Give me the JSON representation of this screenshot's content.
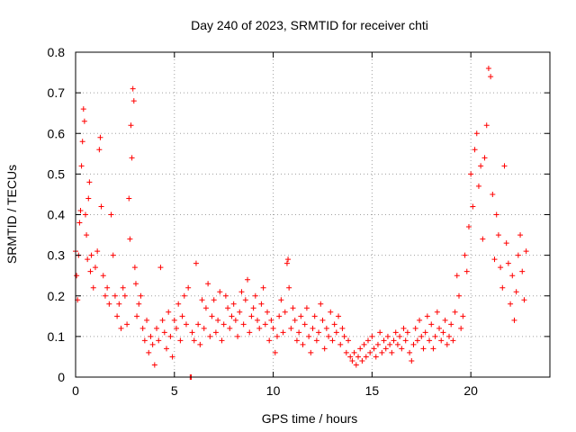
{
  "chart_data": {
    "type": "scatter",
    "title": "Day 240 of 2023, SRMTID for receiver chti",
    "xlabel": "GPS time / hours",
    "ylabel": "SRMTID / TECUs",
    "xlim": [
      0,
      24
    ],
    "ylim": [
      0,
      0.8
    ],
    "xticks": [
      0,
      5,
      10,
      15,
      20
    ],
    "xtick_labels": [
      "0",
      "5",
      "10",
      "15",
      "20"
    ],
    "yticks": [
      0,
      0.1,
      0.2,
      0.3,
      0.4,
      0.5,
      0.6,
      0.7,
      0.8
    ],
    "ytick_labels": [
      "0",
      "0.1",
      "0.2",
      "0.3",
      "0.4",
      "0.5",
      "0.6",
      "0.7",
      "0.8"
    ],
    "grid": true,
    "marker": "+",
    "series": [
      {
        "name": "SRMTID",
        "color": "#ff0000",
        "points": [
          [
            0.0,
            0.31
          ],
          [
            0.05,
            0.25
          ],
          [
            0.1,
            0.19
          ],
          [
            0.15,
            0.3
          ],
          [
            0.2,
            0.38
          ],
          [
            0.25,
            0.41
          ],
          [
            0.3,
            0.52
          ],
          [
            0.35,
            0.58
          ],
          [
            0.4,
            0.66
          ],
          [
            0.45,
            0.63
          ],
          [
            0.5,
            0.4
          ],
          [
            0.55,
            0.35
          ],
          [
            0.6,
            0.29
          ],
          [
            0.65,
            0.44
          ],
          [
            0.7,
            0.48
          ],
          [
            0.75,
            0.26
          ],
          [
            0.8,
            0.3
          ],
          [
            0.9,
            0.22
          ],
          [
            1.0,
            0.27
          ],
          [
            1.1,
            0.31
          ],
          [
            1.2,
            0.56
          ],
          [
            1.25,
            0.59
          ],
          [
            1.3,
            0.42
          ],
          [
            1.4,
            0.25
          ],
          [
            1.5,
            0.2
          ],
          [
            1.6,
            0.22
          ],
          [
            1.7,
            0.18
          ],
          [
            1.8,
            0.4
          ],
          [
            1.9,
            0.3
          ],
          [
            2.0,
            0.2
          ],
          [
            2.1,
            0.15
          ],
          [
            2.2,
            0.18
          ],
          [
            2.3,
            0.12
          ],
          [
            2.4,
            0.22
          ],
          [
            2.5,
            0.2
          ],
          [
            2.6,
            0.13
          ],
          [
            2.7,
            0.44
          ],
          [
            2.75,
            0.34
          ],
          [
            2.8,
            0.62
          ],
          [
            2.85,
            0.54
          ],
          [
            2.9,
            0.71
          ],
          [
            2.95,
            0.68
          ],
          [
            3.0,
            0.27
          ],
          [
            3.05,
            0.23
          ],
          [
            3.1,
            0.15
          ],
          [
            3.2,
            0.18
          ],
          [
            3.3,
            0.2
          ],
          [
            3.4,
            0.12
          ],
          [
            3.5,
            0.09
          ],
          [
            3.6,
            0.14
          ],
          [
            3.7,
            0.06
          ],
          [
            3.8,
            0.1
          ],
          [
            3.9,
            0.08
          ],
          [
            4.0,
            0.03
          ],
          [
            4.1,
            0.12
          ],
          [
            4.2,
            0.09
          ],
          [
            4.3,
            0.27
          ],
          [
            4.4,
            0.14
          ],
          [
            4.5,
            0.11
          ],
          [
            4.6,
            0.07
          ],
          [
            4.7,
            0.16
          ],
          [
            4.8,
            0.1
          ],
          [
            4.9,
            0.05
          ],
          [
            5.0,
            0.14
          ],
          [
            5.1,
            0.12
          ],
          [
            5.2,
            0.18
          ],
          [
            5.3,
            0.09
          ],
          [
            5.4,
            0.15
          ],
          [
            5.5,
            0.2
          ],
          [
            5.6,
            0.13
          ],
          [
            5.7,
            0.22
          ],
          [
            5.8,
            0.0
          ],
          [
            5.85,
            0.0
          ],
          [
            5.9,
            0.11
          ],
          [
            6.0,
            0.09
          ],
          [
            6.1,
            0.28
          ],
          [
            6.2,
            0.13
          ],
          [
            6.3,
            0.08
          ],
          [
            6.4,
            0.19
          ],
          [
            6.5,
            0.12
          ],
          [
            6.6,
            0.17
          ],
          [
            6.7,
            0.23
          ],
          [
            6.8,
            0.1
          ],
          [
            6.9,
            0.15
          ],
          [
            7.0,
            0.19
          ],
          [
            7.1,
            0.11
          ],
          [
            7.2,
            0.14
          ],
          [
            7.3,
            0.21
          ],
          [
            7.4,
            0.09
          ],
          [
            7.5,
            0.13
          ],
          [
            7.6,
            0.2
          ],
          [
            7.7,
            0.17
          ],
          [
            7.8,
            0.12
          ],
          [
            7.9,
            0.15
          ],
          [
            8.0,
            0.18
          ],
          [
            8.1,
            0.14
          ],
          [
            8.2,
            0.1
          ],
          [
            8.3,
            0.16
          ],
          [
            8.4,
            0.21
          ],
          [
            8.5,
            0.13
          ],
          [
            8.6,
            0.19
          ],
          [
            8.7,
            0.24
          ],
          [
            8.8,
            0.11
          ],
          [
            8.9,
            0.15
          ],
          [
            9.0,
            0.17
          ],
          [
            9.1,
            0.2
          ],
          [
            9.2,
            0.14
          ],
          [
            9.3,
            0.12
          ],
          [
            9.4,
            0.18
          ],
          [
            9.5,
            0.22
          ],
          [
            9.6,
            0.13
          ],
          [
            9.7,
            0.16
          ],
          [
            9.8,
            0.09
          ],
          [
            9.9,
            0.14
          ],
          [
            10.0,
            0.12
          ],
          [
            10.1,
            0.06
          ],
          [
            10.2,
            0.1
          ],
          [
            10.3,
            0.15
          ],
          [
            10.4,
            0.19
          ],
          [
            10.5,
            0.11
          ],
          [
            10.6,
            0.16
          ],
          [
            10.7,
            0.28
          ],
          [
            10.75,
            0.29
          ],
          [
            10.8,
            0.22
          ],
          [
            10.9,
            0.12
          ],
          [
            11.0,
            0.17
          ],
          [
            11.1,
            0.14
          ],
          [
            11.2,
            0.09
          ],
          [
            11.3,
            0.11
          ],
          [
            11.4,
            0.15
          ],
          [
            11.5,
            0.08
          ],
          [
            11.6,
            0.13
          ],
          [
            11.7,
            0.17
          ],
          [
            11.8,
            0.1
          ],
          [
            11.9,
            0.06
          ],
          [
            12.0,
            0.12
          ],
          [
            12.1,
            0.15
          ],
          [
            12.2,
            0.09
          ],
          [
            12.3,
            0.11
          ],
          [
            12.4,
            0.18
          ],
          [
            12.5,
            0.14
          ],
          [
            12.6,
            0.07
          ],
          [
            12.7,
            0.12
          ],
          [
            12.8,
            0.1
          ],
          [
            12.9,
            0.16
          ],
          [
            13.0,
            0.09
          ],
          [
            13.1,
            0.13
          ],
          [
            13.2,
            0.11
          ],
          [
            13.3,
            0.15
          ],
          [
            13.4,
            0.08
          ],
          [
            13.5,
            0.12
          ],
          [
            13.6,
            0.1
          ],
          [
            13.7,
            0.06
          ],
          [
            13.8,
            0.09
          ],
          [
            13.9,
            0.05
          ],
          [
            14.0,
            0.04
          ],
          [
            14.1,
            0.06
          ],
          [
            14.2,
            0.03
          ],
          [
            14.3,
            0.05
          ],
          [
            14.4,
            0.07
          ],
          [
            14.5,
            0.04
          ],
          [
            14.6,
            0.08
          ],
          [
            14.7,
            0.05
          ],
          [
            14.8,
            0.09
          ],
          [
            14.9,
            0.06
          ],
          [
            15.0,
            0.1
          ],
          [
            15.1,
            0.07
          ],
          [
            15.2,
            0.05
          ],
          [
            15.3,
            0.08
          ],
          [
            15.4,
            0.11
          ],
          [
            15.5,
            0.06
          ],
          [
            15.6,
            0.09
          ],
          [
            15.7,
            0.07
          ],
          [
            15.8,
            0.1
          ],
          [
            15.9,
            0.08
          ],
          [
            16.0,
            0.06
          ],
          [
            16.1,
            0.09
          ],
          [
            16.2,
            0.11
          ],
          [
            16.3,
            0.08
          ],
          [
            16.4,
            0.1
          ],
          [
            16.5,
            0.07
          ],
          [
            16.6,
            0.12
          ],
          [
            16.7,
            0.09
          ],
          [
            16.8,
            0.11
          ],
          [
            16.9,
            0.06
          ],
          [
            17.0,
            0.04
          ],
          [
            17.1,
            0.08
          ],
          [
            17.2,
            0.12
          ],
          [
            17.3,
            0.09
          ],
          [
            17.4,
            0.14
          ],
          [
            17.5,
            0.1
          ],
          [
            17.6,
            0.07
          ],
          [
            17.7,
            0.11
          ],
          [
            17.8,
            0.15
          ],
          [
            17.9,
            0.09
          ],
          [
            18.0,
            0.13
          ],
          [
            18.1,
            0.07
          ],
          [
            18.2,
            0.1
          ],
          [
            18.3,
            0.16
          ],
          [
            18.4,
            0.12
          ],
          [
            18.5,
            0.09
          ],
          [
            18.6,
            0.11
          ],
          [
            18.7,
            0.14
          ],
          [
            18.8,
            0.08
          ],
          [
            18.9,
            0.1
          ],
          [
            19.0,
            0.13
          ],
          [
            19.1,
            0.09
          ],
          [
            19.2,
            0.16
          ],
          [
            19.3,
            0.25
          ],
          [
            19.4,
            0.2
          ],
          [
            19.5,
            0.12
          ],
          [
            19.6,
            0.15
          ],
          [
            19.7,
            0.3
          ],
          [
            19.8,
            0.26
          ],
          [
            19.9,
            0.37
          ],
          [
            20.0,
            0.5
          ],
          [
            20.1,
            0.42
          ],
          [
            20.2,
            0.56
          ],
          [
            20.3,
            0.6
          ],
          [
            20.4,
            0.47
          ],
          [
            20.5,
            0.52
          ],
          [
            20.6,
            0.34
          ],
          [
            20.7,
            0.54
          ],
          [
            20.8,
            0.62
          ],
          [
            20.9,
            0.76
          ],
          [
            21.0,
            0.74
          ],
          [
            21.1,
            0.45
          ],
          [
            21.2,
            0.29
          ],
          [
            21.3,
            0.4
          ],
          [
            21.4,
            0.35
          ],
          [
            21.5,
            0.27
          ],
          [
            21.6,
            0.22
          ],
          [
            21.7,
            0.52
          ],
          [
            21.8,
            0.33
          ],
          [
            21.9,
            0.28
          ],
          [
            22.0,
            0.18
          ],
          [
            22.1,
            0.25
          ],
          [
            22.2,
            0.14
          ],
          [
            22.3,
            0.21
          ],
          [
            22.4,
            0.3
          ],
          [
            22.5,
            0.35
          ],
          [
            22.6,
            0.26
          ],
          [
            22.7,
            0.19
          ],
          [
            22.8,
            0.31
          ]
        ]
      }
    ]
  }
}
